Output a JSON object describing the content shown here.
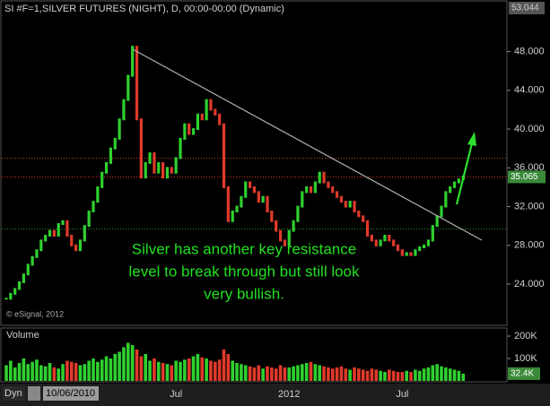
{
  "chart_data": {
    "type": "stock",
    "title": "SI #F=1,SILVER FUTURES (NIGHT), D, 00:00-00:00 (Dynamic)",
    "categories": [
      null,
      null,
      null,
      null,
      null,
      null,
      null,
      null,
      null,
      null,
      null,
      null,
      null,
      null,
      null,
      null,
      null,
      null,
      null,
      null,
      null,
      null,
      null,
      null,
      null,
      null,
      null,
      null,
      null,
      null,
      null,
      null,
      null,
      null,
      null,
      null,
      null,
      null,
      null,
      "Jul",
      null,
      null,
      null,
      null,
      null,
      null,
      null,
      null,
      null,
      null,
      null,
      null,
      null,
      null,
      null,
      null,
      null,
      null,
      null,
      null,
      null,
      null,
      null,
      null,
      null,
      "2012",
      null,
      null,
      null,
      null,
      null,
      null,
      null,
      null,
      null,
      null,
      null,
      null,
      null,
      null,
      null,
      null,
      null,
      null,
      null,
      null,
      null,
      null,
      null,
      null,
      null,
      "Jul",
      null,
      null,
      null,
      null,
      null,
      null,
      null,
      null,
      null,
      null,
      null,
      null,
      null,
      null
    ],
    "values": [
      22.5,
      23,
      23.5,
      24.2,
      25,
      26,
      26.8,
      27.5,
      28.5,
      29,
      29.5,
      29,
      30.2,
      30.5,
      29,
      28,
      27.5,
      28.5,
      30,
      31.5,
      32.5,
      34,
      35.5,
      36.5,
      38,
      39,
      41,
      43,
      45.5,
      48.5,
      41,
      35,
      36.5,
      37.5,
      35.5,
      36.5,
      35,
      36,
      35.5,
      37,
      39,
      40.5,
      39.5,
      40,
      41.5,
      41,
      43,
      42,
      41.5,
      40.5,
      34,
      30.5,
      31.5,
      32,
      33,
      34.5,
      34,
      33.5,
      32.5,
      33,
      31.5,
      30.5,
      29.5,
      28.5,
      28,
      29.5,
      30.5,
      32,
      33.5,
      34,
      33.5,
      34.5,
      35.5,
      34.5,
      34,
      33.5,
      33,
      32.5,
      32,
      32.5,
      31.5,
      31,
      30.5,
      29,
      28.5,
      28,
      28.5,
      29,
      28.5,
      28,
      27.5,
      27,
      27.2,
      27,
      27.5,
      27.8,
      28,
      28.5,
      30,
      31,
      32,
      33.5,
      34,
      34.5,
      34.8,
      35.1
    ],
    "up_color": "#2fd02f",
    "down_color": "#e03a2a",
    "ylim": [
      19.84,
      53.044
    ],
    "yticks": [
      {
        "value": 24,
        "label": "24.000"
      },
      {
        "value": 28,
        "label": "28.000"
      },
      {
        "value": 32,
        "label": "32.000"
      },
      {
        "value": 36,
        "label": "36.000"
      },
      {
        "value": 40,
        "label": "40.000"
      },
      {
        "value": 44,
        "label": "44.000"
      },
      {
        "value": 48,
        "label": "48.000"
      }
    ],
    "last_price": 35.065,
    "levels": [
      {
        "value": 37,
        "color": "#c03a2e"
      },
      {
        "value": 29.7,
        "color": "#2e9a2e"
      }
    ],
    "annotation": [
      "Silver has another key resistance",
      "level to break through but still look",
      "very bullish."
    ],
    "copyright": "© eSignal, 2012",
    "volume": {
      "name": "Volume",
      "values": [
        70000,
        90000,
        60000,
        80000,
        100000,
        75000,
        85000,
        95000,
        70000,
        65000,
        80000,
        60000,
        55000,
        75000,
        90000,
        85000,
        80000,
        70000,
        75000,
        90000,
        100000,
        85000,
        95000,
        110000,
        100000,
        120000,
        130000,
        150000,
        170000,
        160000,
        140000,
        110000,
        120000,
        90000,
        100000,
        85000,
        80000,
        75000,
        70000,
        90000,
        85000,
        95000,
        100000,
        110000,
        120000,
        105000,
        100000,
        90000,
        85000,
        95000,
        140000,
        120000,
        90000,
        80000,
        75000,
        70000,
        65000,
        60000,
        70000,
        55000,
        65000,
        60000,
        55000,
        70000,
        60000,
        60000,
        65000,
        70000,
        75000,
        80000,
        85000,
        75000,
        70000,
        65000,
        60000,
        55000,
        60000,
        65000,
        55000,
        50000,
        60000,
        55000,
        50000,
        45000,
        55000,
        50000,
        45000,
        40000,
        50000,
        45000,
        40000,
        40000,
        45000,
        40000,
        50000,
        45000,
        55000,
        60000,
        70000,
        75000,
        65000,
        60000,
        55000,
        50000,
        45000,
        32400
      ],
      "ylim": [
        0,
        232000
      ],
      "yticks": [
        {
          "value": 100000,
          "label": "100K"
        },
        {
          "value": 200000,
          "label": "200K"
        }
      ],
      "last": {
        "value": 32400,
        "label": "32.4K"
      }
    },
    "footer": {
      "mode": "Dyn",
      "date": "10/06/2010"
    }
  }
}
